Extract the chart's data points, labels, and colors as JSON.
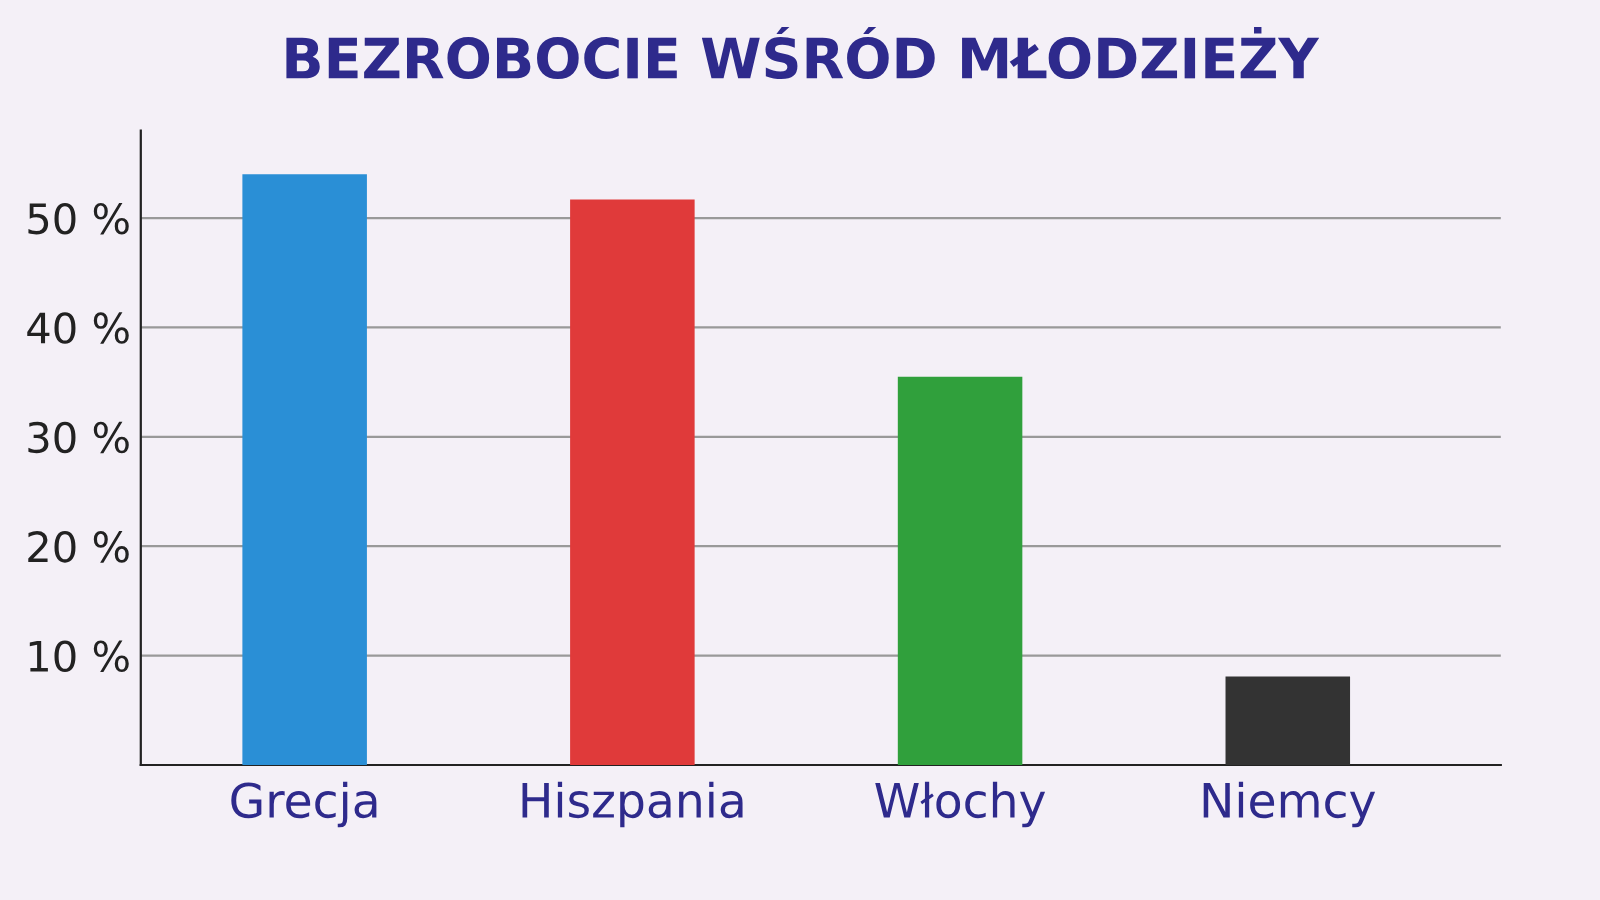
{
  "chart_data": {
    "type": "bar",
    "title": "BEZROBOCIE WŚRÓD MŁODZIEŻY",
    "categories": [
      "Grecja",
      "Hiszpania",
      "Włochy",
      "Niemcy"
    ],
    "values": [
      54.0,
      51.7,
      35.5,
      8.1
    ],
    "colors": [
      "#2a8fd6",
      "#e03a3a",
      "#30a03c",
      "#333333"
    ],
    "ylim": [
      0,
      58
    ],
    "yticks": [
      {
        "value": 10,
        "label": "10 %"
      },
      {
        "value": 20,
        "label": "20 %"
      },
      {
        "value": 30,
        "label": "30 %"
      },
      {
        "value": 40,
        "label": "40 %"
      },
      {
        "value": 50,
        "label": "50 %"
      }
    ],
    "grid": "y"
  }
}
